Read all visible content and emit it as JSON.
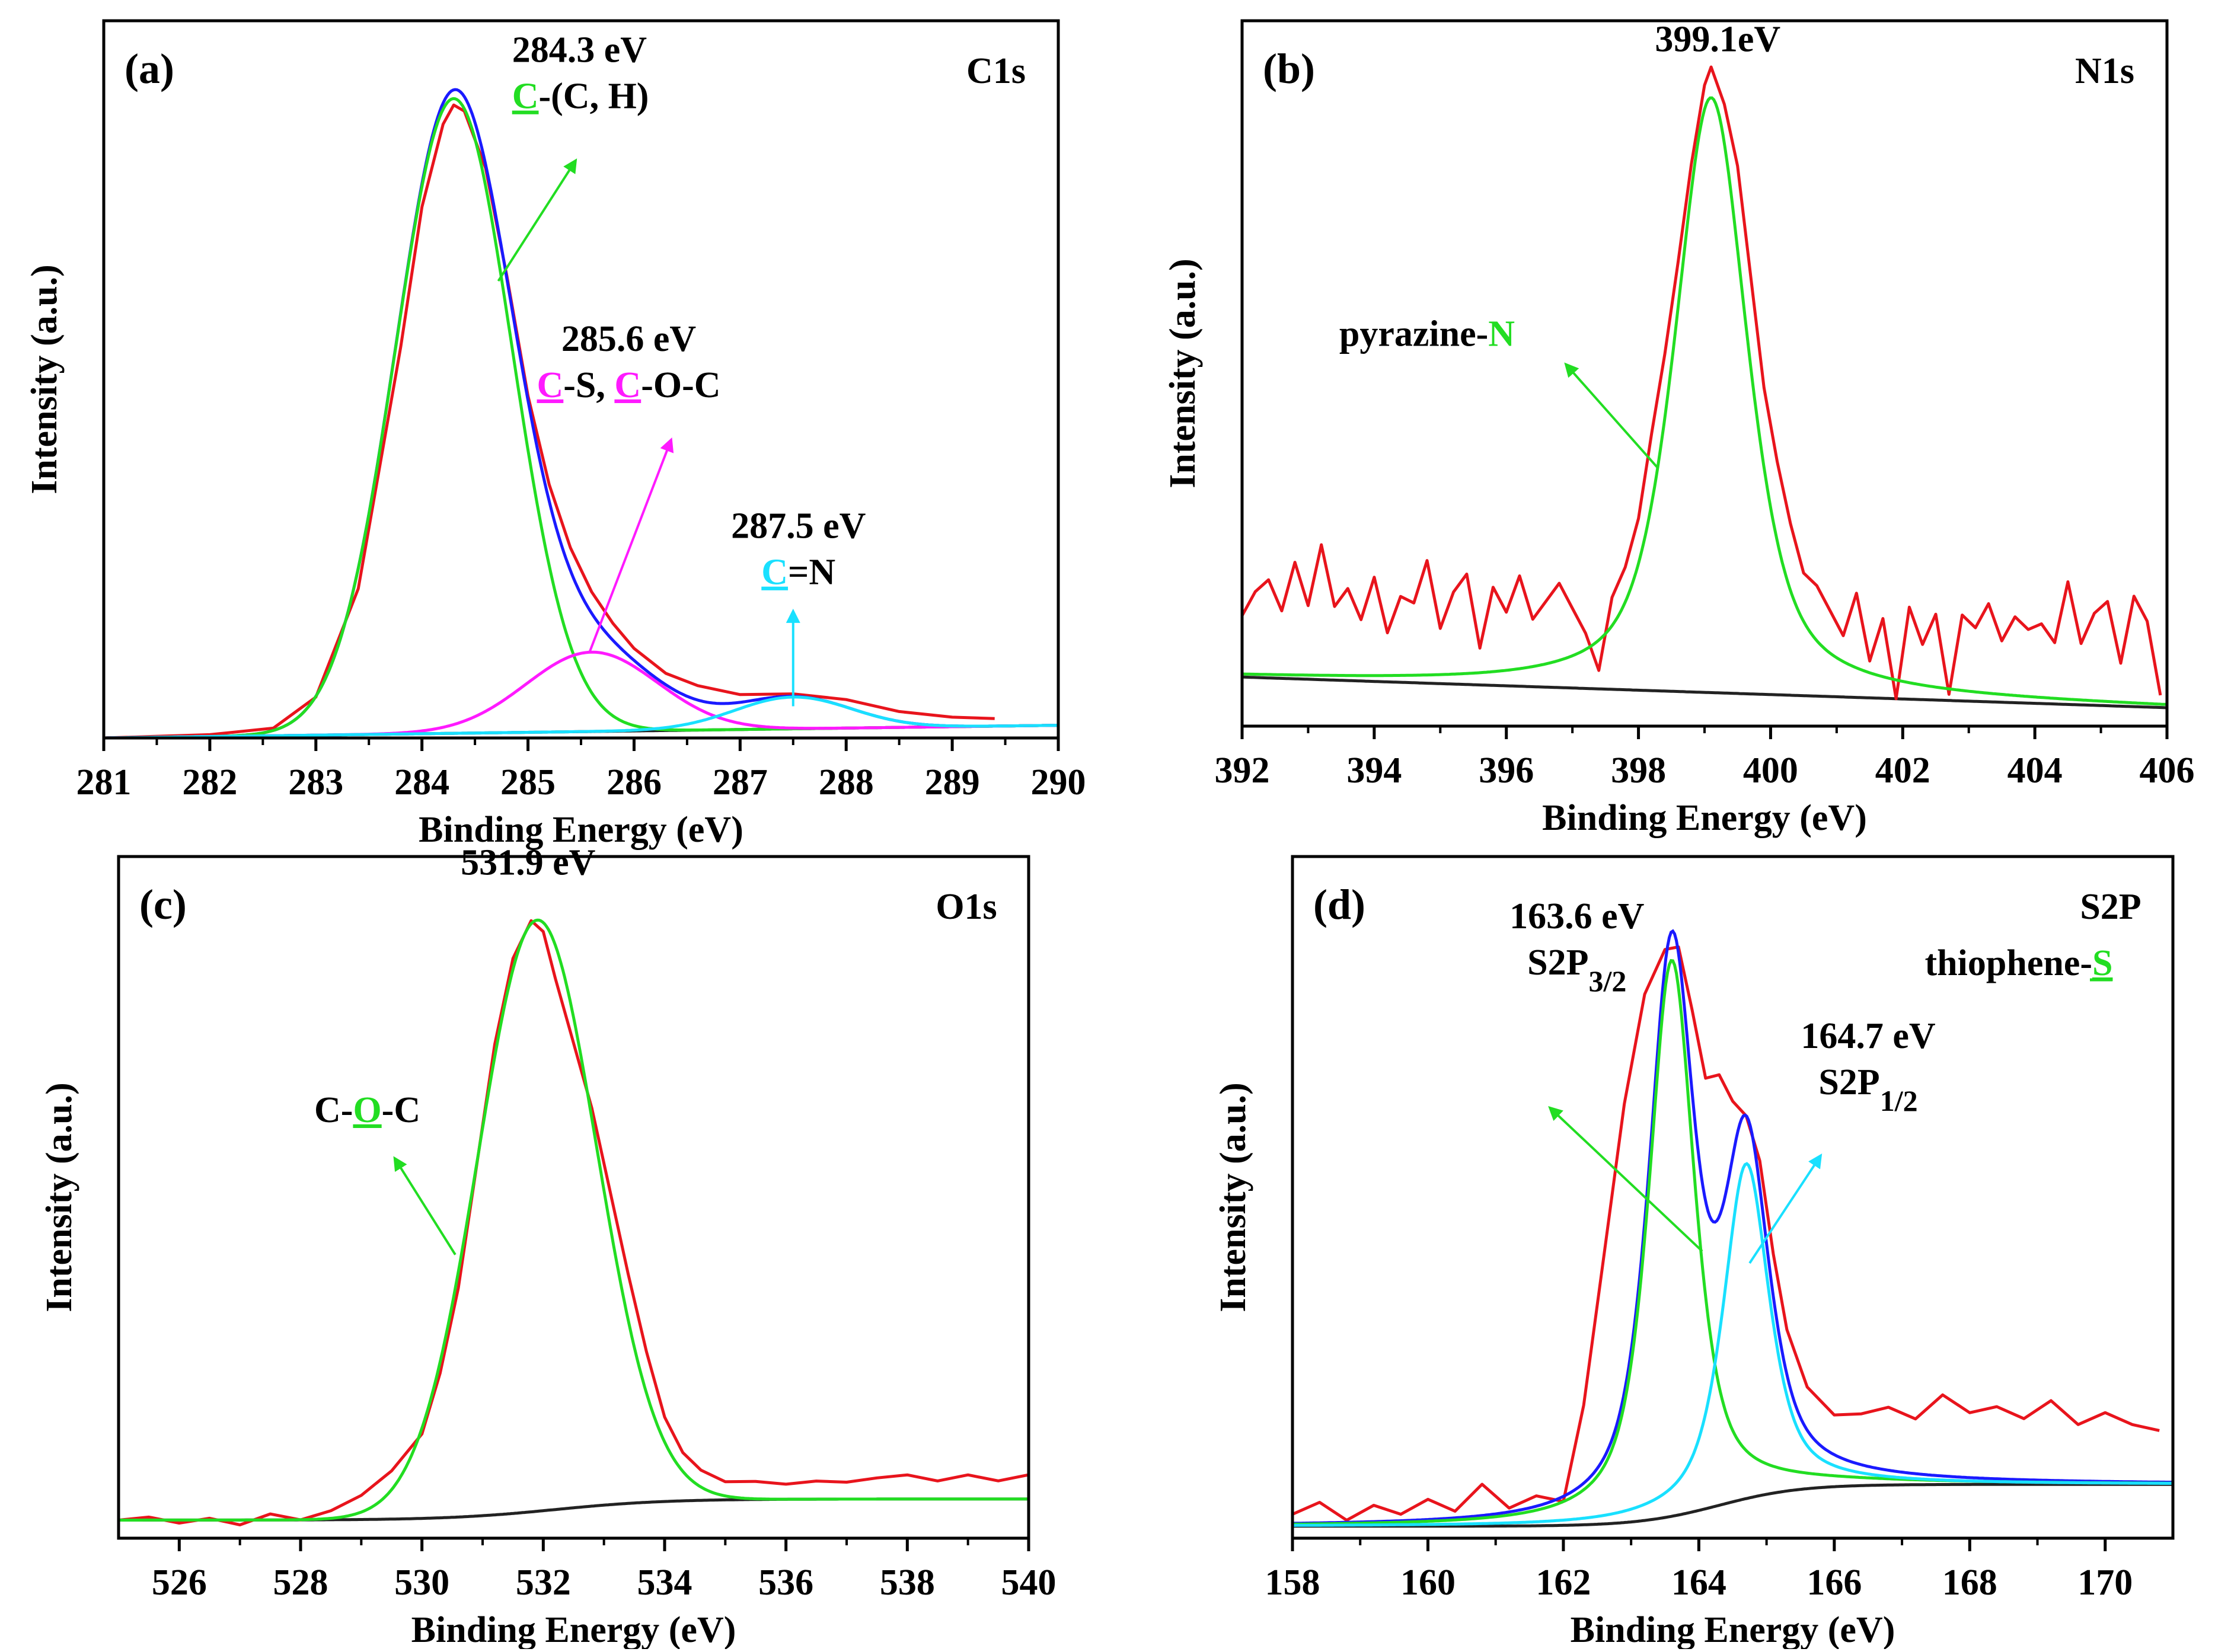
{
  "chart_data": [
    {
      "type": "line",
      "id": "a",
      "panel_label": "(a)",
      "element": "C1s",
      "xlabel": "Binding Energy (eV)",
      "ylabel": "Intensity (a.u.)",
      "xlim": [
        281,
        290
      ],
      "ylim": [
        0,
        1.13
      ],
      "xticks": [
        "281",
        "282",
        "283",
        "284",
        "285",
        "286",
        "287",
        "288",
        "289",
        "290"
      ],
      "colors": {
        "raw": "#e8141c",
        "envelope": "#1a1aff",
        "peak1": "#22dd22",
        "peak2": "#ff1aff",
        "peak3": "#19e0ff",
        "background": "#222222"
      },
      "baseline": {
        "start": 0.0,
        "end": 0.02
      },
      "peaks": [
        {
          "center": 284.3,
          "height": 1.0,
          "sigma": 0.55,
          "series": "peak1"
        },
        {
          "center": 285.6,
          "height": 0.125,
          "sigma": 0.62,
          "series": "peak2"
        },
        {
          "center": 287.5,
          "height": 0.05,
          "sigma": 0.55,
          "series": "peak3"
        }
      ],
      "series": [
        {
          "name": "raw",
          "x": [
            281.0,
            282.0,
            282.6,
            283.0,
            283.4,
            283.8,
            284.0,
            284.2,
            284.3,
            284.4,
            284.6,
            284.8,
            285.0,
            285.2,
            285.4,
            285.6,
            285.8,
            286.0,
            286.3,
            286.6,
            287.0,
            287.5,
            288.0,
            288.5,
            289.0,
            289.4
          ],
          "y": [
            0.0,
            0.003,
            0.012,
            0.06,
            0.23,
            0.61,
            0.83,
            0.96,
            0.99,
            0.98,
            0.89,
            0.72,
            0.53,
            0.39,
            0.29,
            0.22,
            0.17,
            0.13,
            0.09,
            0.07,
            0.055,
            0.055,
            0.045,
            0.025,
            0.015,
            0.012
          ]
        }
      ],
      "annotations": [
        {
          "lines": [
            [
              {
                "t": "284.3 eV"
              }
            ],
            [
              {
                "t": "C",
                "u": "#22dd22"
              },
              {
                "t": "-(C, H)"
              }
            ]
          ],
          "x": 284.85,
          "y": 1.065,
          "anchor": "start",
          "arrow_color": "#22dd22",
          "arrow_from": [
            284.72,
            0.72
          ],
          "arrow_to": [
            285.45,
            0.91
          ]
        },
        {
          "lines": [
            [
              {
                "t": "285.6 eV"
              }
            ],
            [
              {
                "t": "C",
                "u": "#ff1aff"
              },
              {
                "t": "-S, "
              },
              {
                "t": "C",
                "u": "#ff1aff"
              },
              {
                "t": "-O-C"
              }
            ]
          ],
          "x": 285.95,
          "y": 0.61,
          "anchor": "middle",
          "arrow_color": "#ff1aff",
          "arrow_from": [
            285.58,
            0.135
          ],
          "arrow_to": [
            286.35,
            0.47
          ]
        },
        {
          "lines": [
            [
              {
                "t": "287.5 eV"
              }
            ],
            [
              {
                "t": "C",
                "u": "#19e0ff"
              },
              {
                "t": "=N"
              }
            ]
          ],
          "x": 287.55,
          "y": 0.315,
          "anchor": "middle",
          "arrow_color": "#19e0ff",
          "arrow_from": [
            287.5,
            0.05
          ],
          "arrow_to": [
            287.5,
            0.2
          ]
        }
      ]
    },
    {
      "type": "line",
      "id": "b",
      "panel_label": "(b)",
      "element": "N1s",
      "xlabel": "Binding Energy (eV)",
      "ylabel": "Intensity (a.u.)",
      "xlim": [
        392,
        406
      ],
      "ylim": [
        0,
        1.15
      ],
      "xticks": [
        "392",
        "394",
        "396",
        "398",
        "400",
        "402",
        "404",
        "406"
      ],
      "colors": {
        "raw": "#e8141c",
        "peak1": "#22dd22",
        "background": "#222222"
      },
      "baseline": {
        "start": 0.08,
        "end": 0.03
      },
      "peaks": [
        {
          "center": 399.1,
          "height": 0.97,
          "sigma": 0.55,
          "lorentz": 0.6,
          "series": "peak1"
        }
      ],
      "series": [
        {
          "name": "raw",
          "x": [
            392.0,
            392.2,
            392.4,
            392.6,
            392.8,
            393.0,
            393.2,
            393.4,
            393.6,
            393.8,
            394.0,
            394.2,
            394.4,
            394.6,
            394.8,
            395.0,
            395.2,
            395.4,
            395.6,
            395.8,
            396.0,
            396.2,
            396.4,
            396.6,
            396.8,
            397.0,
            397.2,
            397.4,
            397.6,
            397.8,
            398.0,
            398.2,
            398.4,
            398.6,
            398.8,
            399.0,
            399.1,
            399.3,
            399.5,
            399.7,
            399.9,
            400.1,
            400.3,
            400.5,
            400.7,
            400.9,
            401.1,
            401.3,
            401.5,
            401.7,
            401.9,
            402.1,
            402.3,
            402.5,
            402.7,
            402.9,
            403.1,
            403.3,
            403.5,
            403.7,
            403.9,
            404.1,
            404.3,
            404.5,
            404.7,
            404.9,
            405.1,
            405.3,
            405.5,
            405.7,
            405.9
          ],
          "y": [
            0.1,
            0.14,
            0.16,
            0.11,
            0.19,
            0.12,
            0.22,
            0.12,
            0.15,
            0.1,
            0.17,
            0.08,
            0.14,
            0.13,
            0.2,
            0.09,
            0.15,
            0.18,
            0.06,
            0.16,
            0.12,
            0.18,
            0.11,
            0.14,
            0.17,
            0.13,
            0.09,
            0.03,
            0.15,
            0.2,
            0.28,
            0.42,
            0.55,
            0.7,
            0.86,
            0.99,
            1.02,
            0.96,
            0.86,
            0.68,
            0.5,
            0.38,
            0.28,
            0.2,
            0.18,
            0.14,
            0.1,
            0.17,
            0.06,
            0.13,
            0.0,
            0.15,
            0.09,
            0.14,
            0.01,
            0.14,
            0.12,
            0.16,
            0.1,
            0.14,
            0.12,
            0.13,
            0.1,
            0.2,
            0.1,
            0.15,
            0.17,
            0.07,
            0.18,
            0.14,
            0.02
          ]
        }
      ],
      "annotations": [
        {
          "lines": [
            [
              {
                "t": "399.1eV"
              }
            ]
          ],
          "x": 399.2,
          "y": 1.1,
          "anchor": "middle"
        },
        {
          "lines": [
            [
              {
                "t": "pyrazine-"
              },
              {
                "t": "N",
                "c": "#22dd22"
              }
            ]
          ],
          "x": 394.8,
          "y": 0.62,
          "anchor": "middle",
          "arrow_color": "#22dd22",
          "arrow_from": [
            398.3,
            0.42
          ],
          "arrow_to": [
            396.9,
            0.59
          ]
        }
      ]
    },
    {
      "type": "line",
      "id": "c",
      "panel_label": "(c)",
      "element": "O1s",
      "xlabel": "Binding Energy (eV)",
      "ylabel": "Intensity (a.u.)",
      "xlim": [
        525,
        540
      ],
      "ylim": [
        -0.03,
        1.1
      ],
      "xticks": [
        "526",
        "528",
        "530",
        "532",
        "534",
        "536",
        "538",
        "540"
      ],
      "colors": {
        "raw": "#e8141c",
        "peak1": "#22dd22",
        "background": "#222222"
      },
      "baseline": {
        "start": 0.0,
        "end": 0.035,
        "step_center": 532.2,
        "step_width": 0.9
      },
      "peaks": [
        {
          "center": 531.9,
          "height": 0.98,
          "sigma": 0.98,
          "series": "peak1"
        }
      ],
      "series": [
        {
          "name": "raw",
          "x": [
            525.0,
            525.5,
            526.0,
            526.5,
            527.0,
            527.5,
            528.0,
            528.5,
            529.0,
            529.5,
            530.0,
            530.3,
            530.6,
            530.9,
            531.2,
            531.5,
            531.8,
            532.0,
            532.2,
            532.5,
            532.8,
            533.1,
            533.4,
            533.7,
            534.0,
            534.3,
            534.6,
            535.0,
            535.5,
            536.0,
            536.5,
            537.0,
            537.5,
            538.0,
            538.5,
            539.0,
            539.5,
            540.0
          ],
          "y": [
            0.0,
            0.005,
            -0.005,
            0.003,
            -0.008,
            0.01,
            0.0,
            0.015,
            0.04,
            0.08,
            0.14,
            0.24,
            0.38,
            0.58,
            0.78,
            0.92,
            0.98,
            0.96,
            0.88,
            0.77,
            0.66,
            0.52,
            0.38,
            0.25,
            0.14,
            0.08,
            0.05,
            0.03,
            0.03,
            0.025,
            0.03,
            0.028,
            0.035,
            0.04,
            0.03,
            0.04,
            0.03,
            0.04
          ]
        }
      ],
      "annotations": [
        {
          "lines": [
            [
              {
                "t": "531.9 eV"
              }
            ]
          ],
          "x": 531.75,
          "y": 1.07,
          "anchor": "middle"
        },
        {
          "lines": [
            [
              {
                "t": "C-"
              },
              {
                "t": "O",
                "u": "#22dd22"
              },
              {
                "t": "-C"
              }
            ]
          ],
          "x": 529.1,
          "y": 0.66,
          "anchor": "middle",
          "arrow_color": "#22dd22",
          "arrow_from": [
            530.55,
            0.44
          ],
          "arrow_to": [
            529.55,
            0.6
          ]
        }
      ]
    },
    {
      "type": "line",
      "id": "d",
      "panel_label": "(d)",
      "element": "S2P",
      "sub_label": "thiophene-",
      "sub_label_element": "S",
      "xlabel": "Binding Energy (eV)",
      "ylabel": "Intensity (a.u.)",
      "xlim": [
        158,
        171
      ],
      "ylim": [
        -0.02,
        1.12
      ],
      "xticks": [
        "158",
        "160",
        "162",
        "164",
        "166",
        "168",
        "170"
      ],
      "colors": {
        "raw": "#e8141c",
        "envelope": "#1a1aff",
        "peak1": "#22dd22",
        "peak2": "#19e0ff",
        "background": "#222222",
        "label": "#22dd22"
      },
      "baseline": {
        "start": 0.0,
        "end": 0.07,
        "step_center": 164.3,
        "step_width": 0.6
      },
      "peaks": [
        {
          "center": 163.6,
          "height": 0.93,
          "sigma": 0.34,
          "lorentz": 0.7,
          "series": "peak1"
        },
        {
          "center": 164.7,
          "height": 0.56,
          "sigma": 0.34,
          "lorentz": 0.7,
          "series": "peak2"
        }
      ],
      "series": [
        {
          "name": "raw",
          "x": [
            158.0,
            158.4,
            158.8,
            159.2,
            159.6,
            160.0,
            160.4,
            160.8,
            161.2,
            161.6,
            162.0,
            162.3,
            162.6,
            162.9,
            163.2,
            163.5,
            163.7,
            163.9,
            164.1,
            164.3,
            164.5,
            164.7,
            164.9,
            165.1,
            165.3,
            165.6,
            166.0,
            166.4,
            166.8,
            167.2,
            167.6,
            168.0,
            168.4,
            168.8,
            169.2,
            169.6,
            170.0,
            170.4,
            170.8
          ],
          "y": [
            0.02,
            0.04,
            0.01,
            0.035,
            0.02,
            0.045,
            0.025,
            0.07,
            0.03,
            0.05,
            0.04,
            0.2,
            0.45,
            0.7,
            0.88,
            0.95,
            0.95,
            0.84,
            0.72,
            0.72,
            0.67,
            0.64,
            0.56,
            0.4,
            0.27,
            0.17,
            0.12,
            0.12,
            0.13,
            0.11,
            0.15,
            0.12,
            0.13,
            0.11,
            0.14,
            0.1,
            0.12,
            0.1,
            0.09
          ]
        }
      ],
      "annotations": [
        {
          "lines": [
            [
              {
                "t": "163.6 eV"
              }
            ],
            [
              {
                "t": "S2P"
              },
              {
                "t": "3/2",
                "sub": true
              }
            ]
          ],
          "x": 162.2,
          "y": 1.0,
          "anchor": "middle",
          "arrow_color": "#22dd22",
          "arrow_from": [
            164.05,
            0.46
          ],
          "arrow_to": [
            161.8,
            0.7
          ]
        },
        {
          "lines": [
            [
              {
                "t": "164.7 eV"
              }
            ],
            [
              {
                "t": "S2P"
              },
              {
                "t": "1/2",
                "sub": true
              }
            ]
          ],
          "x": 166.5,
          "y": 0.8,
          "anchor": "middle",
          "arrow_color": "#19e0ff",
          "arrow_from": [
            164.75,
            0.44
          ],
          "arrow_to": [
            165.8,
            0.62
          ]
        }
      ]
    }
  ]
}
